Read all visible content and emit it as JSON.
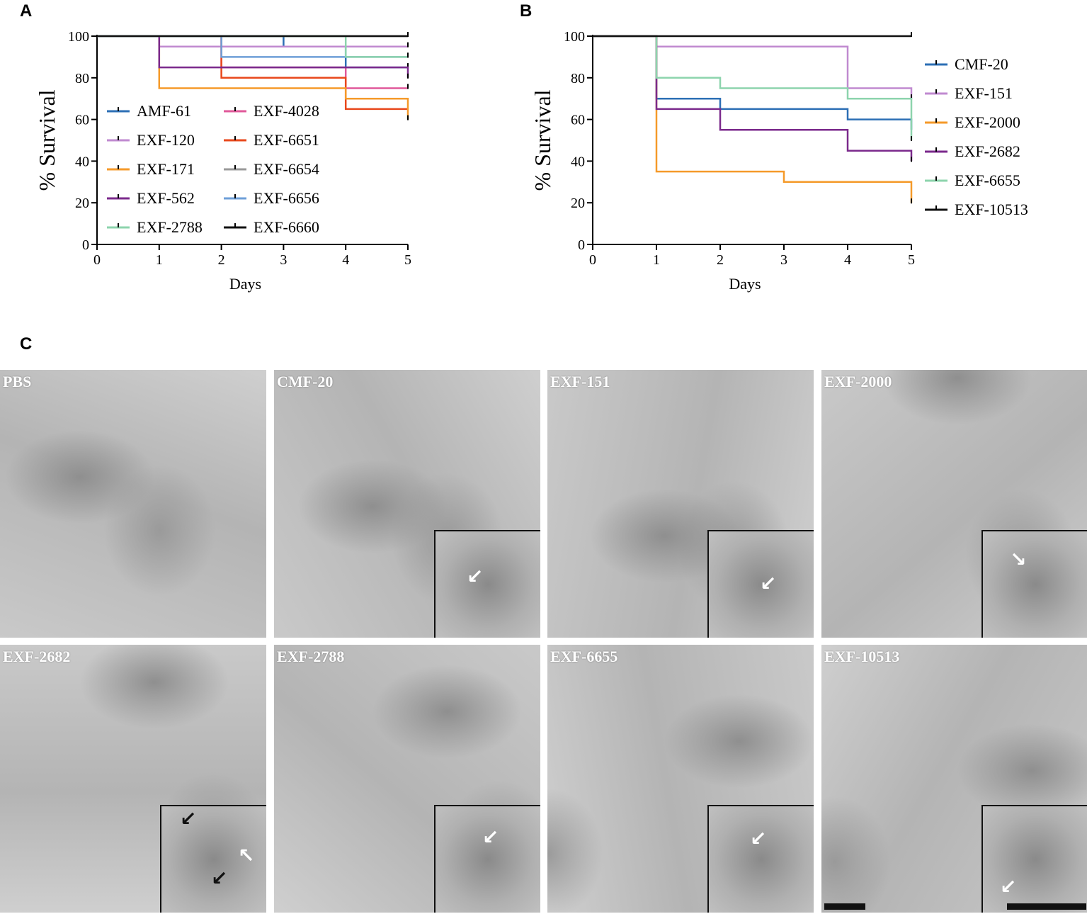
{
  "panels": {
    "a": "A",
    "b": "B",
    "c": "C"
  },
  "chart_data": [
    {
      "type": "line",
      "step": true,
      "ylabel": "% Survival",
      "xlabel": "Days",
      "xlim": [
        0,
        5
      ],
      "ylim": [
        0,
        100
      ],
      "xticks": [
        "0",
        "1",
        "2",
        "3",
        "4",
        "5"
      ],
      "yticks": [
        "0",
        "20",
        "40",
        "60",
        "80",
        "100"
      ],
      "legend": "bottom-left, two columns",
      "series": [
        {
          "name": "AMF-61",
          "color": "#2c6fb5",
          "x": [
            0,
            3,
            4,
            5
          ],
          "y": [
            100,
            95,
            85,
            85
          ]
        },
        {
          "name": "EXF-4028",
          "color": "#e0589a",
          "x": [
            0,
            2,
            4,
            5
          ],
          "y": [
            100,
            85,
            75,
            75
          ]
        },
        {
          "name": "EXF-120",
          "color": "#c08ad0",
          "x": [
            0,
            1,
            5
          ],
          "y": [
            100,
            95,
            95
          ]
        },
        {
          "name": "EXF-6651",
          "color": "#e8481c",
          "x": [
            0,
            2,
            4,
            5
          ],
          "y": [
            100,
            80,
            65,
            65
          ]
        },
        {
          "name": "EXF-171",
          "color": "#f59a2a",
          "x": [
            0,
            1,
            4,
            5
          ],
          "y": [
            100,
            75,
            70,
            60
          ]
        },
        {
          "name": "EXF-6654",
          "color": "#999999",
          "x": [
            0,
            5
          ],
          "y": [
            100,
            100
          ]
        },
        {
          "name": "EXF-562",
          "color": "#7b2a8c",
          "x": [
            0,
            1,
            5
          ],
          "y": [
            100,
            85,
            80
          ]
        },
        {
          "name": "EXF-6656",
          "color": "#6e9fd8",
          "x": [
            0,
            2,
            4,
            5
          ],
          "y": [
            100,
            90,
            90,
            90
          ]
        },
        {
          "name": "EXF-2788",
          "color": "#8dd4ad",
          "x": [
            0,
            4,
            5
          ],
          "y": [
            100,
            90,
            90
          ]
        },
        {
          "name": "EXF-6660",
          "color": "#111111",
          "x": [
            0,
            5
          ],
          "y": [
            100,
            100
          ]
        }
      ]
    },
    {
      "type": "line",
      "step": true,
      "ylabel": "% Survival",
      "xlabel": "Days",
      "xlim": [
        0,
        5
      ],
      "ylim": [
        0,
        100
      ],
      "xticks": [
        "0",
        "1",
        "2",
        "3",
        "4",
        "5"
      ],
      "yticks": [
        "0",
        "20",
        "40",
        "60",
        "80",
        "100"
      ],
      "legend": "right",
      "series": [
        {
          "name": "CMF-20",
          "color": "#2c6fb5",
          "x": [
            0,
            1,
            2,
            4,
            5
          ],
          "y": [
            100,
            70,
            65,
            60,
            55
          ]
        },
        {
          "name": "EXF-151",
          "color": "#c08ad0",
          "x": [
            0,
            1,
            4,
            5
          ],
          "y": [
            100,
            95,
            75,
            70
          ]
        },
        {
          "name": "EXF-2000",
          "color": "#f59a2a",
          "x": [
            0,
            1,
            3,
            5
          ],
          "y": [
            100,
            35,
            30,
            20
          ]
        },
        {
          "name": "EXF-2682",
          "color": "#7b2a8c",
          "x": [
            0,
            1,
            2,
            4,
            5
          ],
          "y": [
            100,
            65,
            55,
            45,
            40
          ]
        },
        {
          "name": "EXF-6655",
          "color": "#8dd4ad",
          "x": [
            0,
            1,
            2,
            4,
            5
          ],
          "y": [
            100,
            80,
            75,
            70,
            50
          ]
        },
        {
          "name": "EXF-10513",
          "color": "#111111",
          "x": [
            0,
            1,
            5
          ],
          "y": [
            100,
            100,
            100
          ]
        }
      ]
    }
  ],
  "histology": [
    {
      "label": "PBS",
      "inset": false
    },
    {
      "label": "CMF-20",
      "inset": true
    },
    {
      "label": "EXF-151",
      "inset": true
    },
    {
      "label": "EXF-2000",
      "inset": true
    },
    {
      "label": "EXF-2682",
      "inset": true
    },
    {
      "label": "EXF-2788",
      "inset": true
    },
    {
      "label": "EXF-6655",
      "inset": true
    },
    {
      "label": "EXF-10513",
      "inset": true
    }
  ]
}
